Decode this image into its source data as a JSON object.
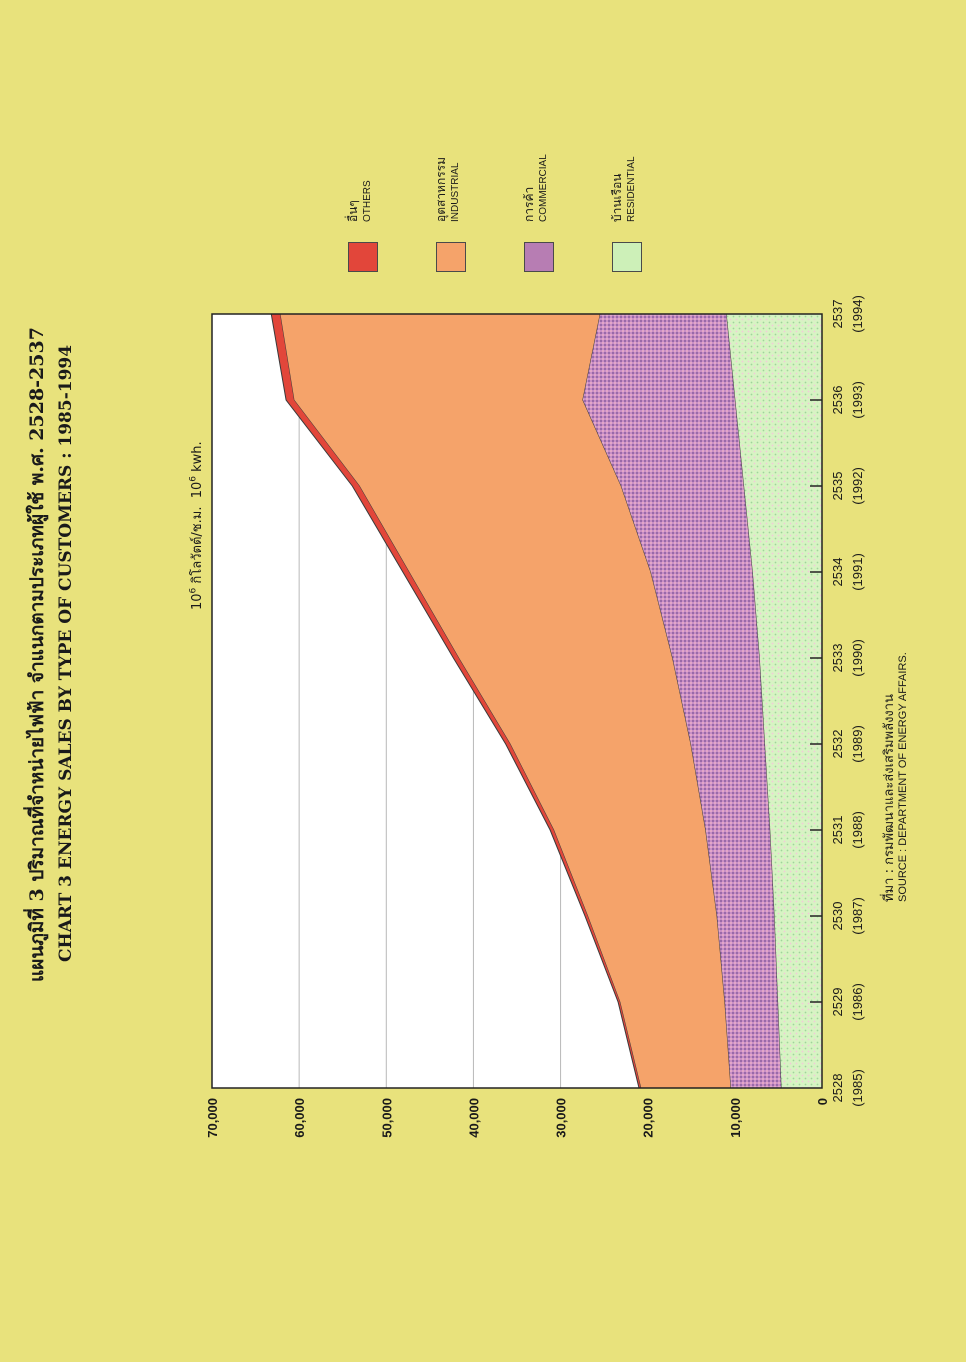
{
  "title_th": "แผนภูมิที่ 3 ปริมาณที่จำหน่ายไฟฟ้า จำแนกตามประเภทผู้ใช้ พ.ศ. 2528-2537",
  "title_en": "CHART 3 ENERGY SALES BY TYPE OF CUSTOMERS : 1985-1994",
  "unit": {
    "base": "10",
    "exp": "6",
    "th": " กิโลวัตต์/ช.ม.",
    "en": " kwh."
  },
  "source": {
    "th": "ที่มา : กรมพัฒนาและส่งเสริมพลังงาน",
    "en": "SOURCE : DEPARTMENT OF ENERGY AFFAIRS."
  },
  "colors": {
    "background": "#e8e27c",
    "plot": "#ffffff",
    "residential": "#cdf0b8",
    "commercial": "#b77db3",
    "industrial": "#f5a36a",
    "others": "#e2463a",
    "line": "#3a3a3a"
  },
  "chart_data": {
    "type": "area",
    "stacked": true,
    "categories": [
      "2528\n(1985)",
      "2529\n(1986)",
      "2530\n(1987)",
      "2531\n(1988)",
      "2532\n(1989)",
      "2533\n(1990)",
      "2534\n(1991)",
      "2535\n(1992)",
      "2536\n(1993)",
      "2537\n(1994)"
    ],
    "x_labels_top": [
      "2528",
      "2529",
      "2530",
      "2531",
      "2532",
      "2533",
      "2534",
      "2535",
      "2536",
      "2537"
    ],
    "x_labels_bottom": [
      "(1985)",
      "(1986)",
      "(1987)",
      "(1988)",
      "(1989)",
      "(1990)",
      "(1991)",
      "(1992)",
      "(1993)",
      "(1994)"
    ],
    "series": [
      {
        "name": "RESIDENTIAL",
        "name_th": "บ้านเรือน",
        "values": [
          4700,
          5100,
          5500,
          6000,
          6600,
          7200,
          8000,
          9000,
          10000,
          11000
        ]
      },
      {
        "name": "COMMERCIAL",
        "name_th": "การค้า",
        "values": [
          5800,
          6100,
          6600,
          7400,
          8500,
          10000,
          11700,
          14100,
          17500,
          14500
        ]
      },
      {
        "name": "INDUSTRIAL",
        "name_th": "อุตสาหกรรม",
        "values": [
          10300,
          12000,
          14800,
          17400,
          20700,
          24500,
          27700,
          30000,
          33100,
          36700
        ]
      },
      {
        "name": "OTHERS",
        "name_th": "อื่นๆ",
        "values": [
          200,
          200,
          300,
          400,
          500,
          600,
          700,
          800,
          900,
          1000
        ]
      }
    ],
    "ylim": [
      0,
      70000
    ],
    "yticks": [
      0,
      10000,
      20000,
      30000,
      40000,
      50000,
      60000,
      70000
    ],
    "ytick_labels": [
      "0",
      "10,000",
      "20,000",
      "30,000",
      "40,000",
      "50,000",
      "60,000",
      "70,000"
    ],
    "grid": true,
    "legend_position": "right"
  }
}
